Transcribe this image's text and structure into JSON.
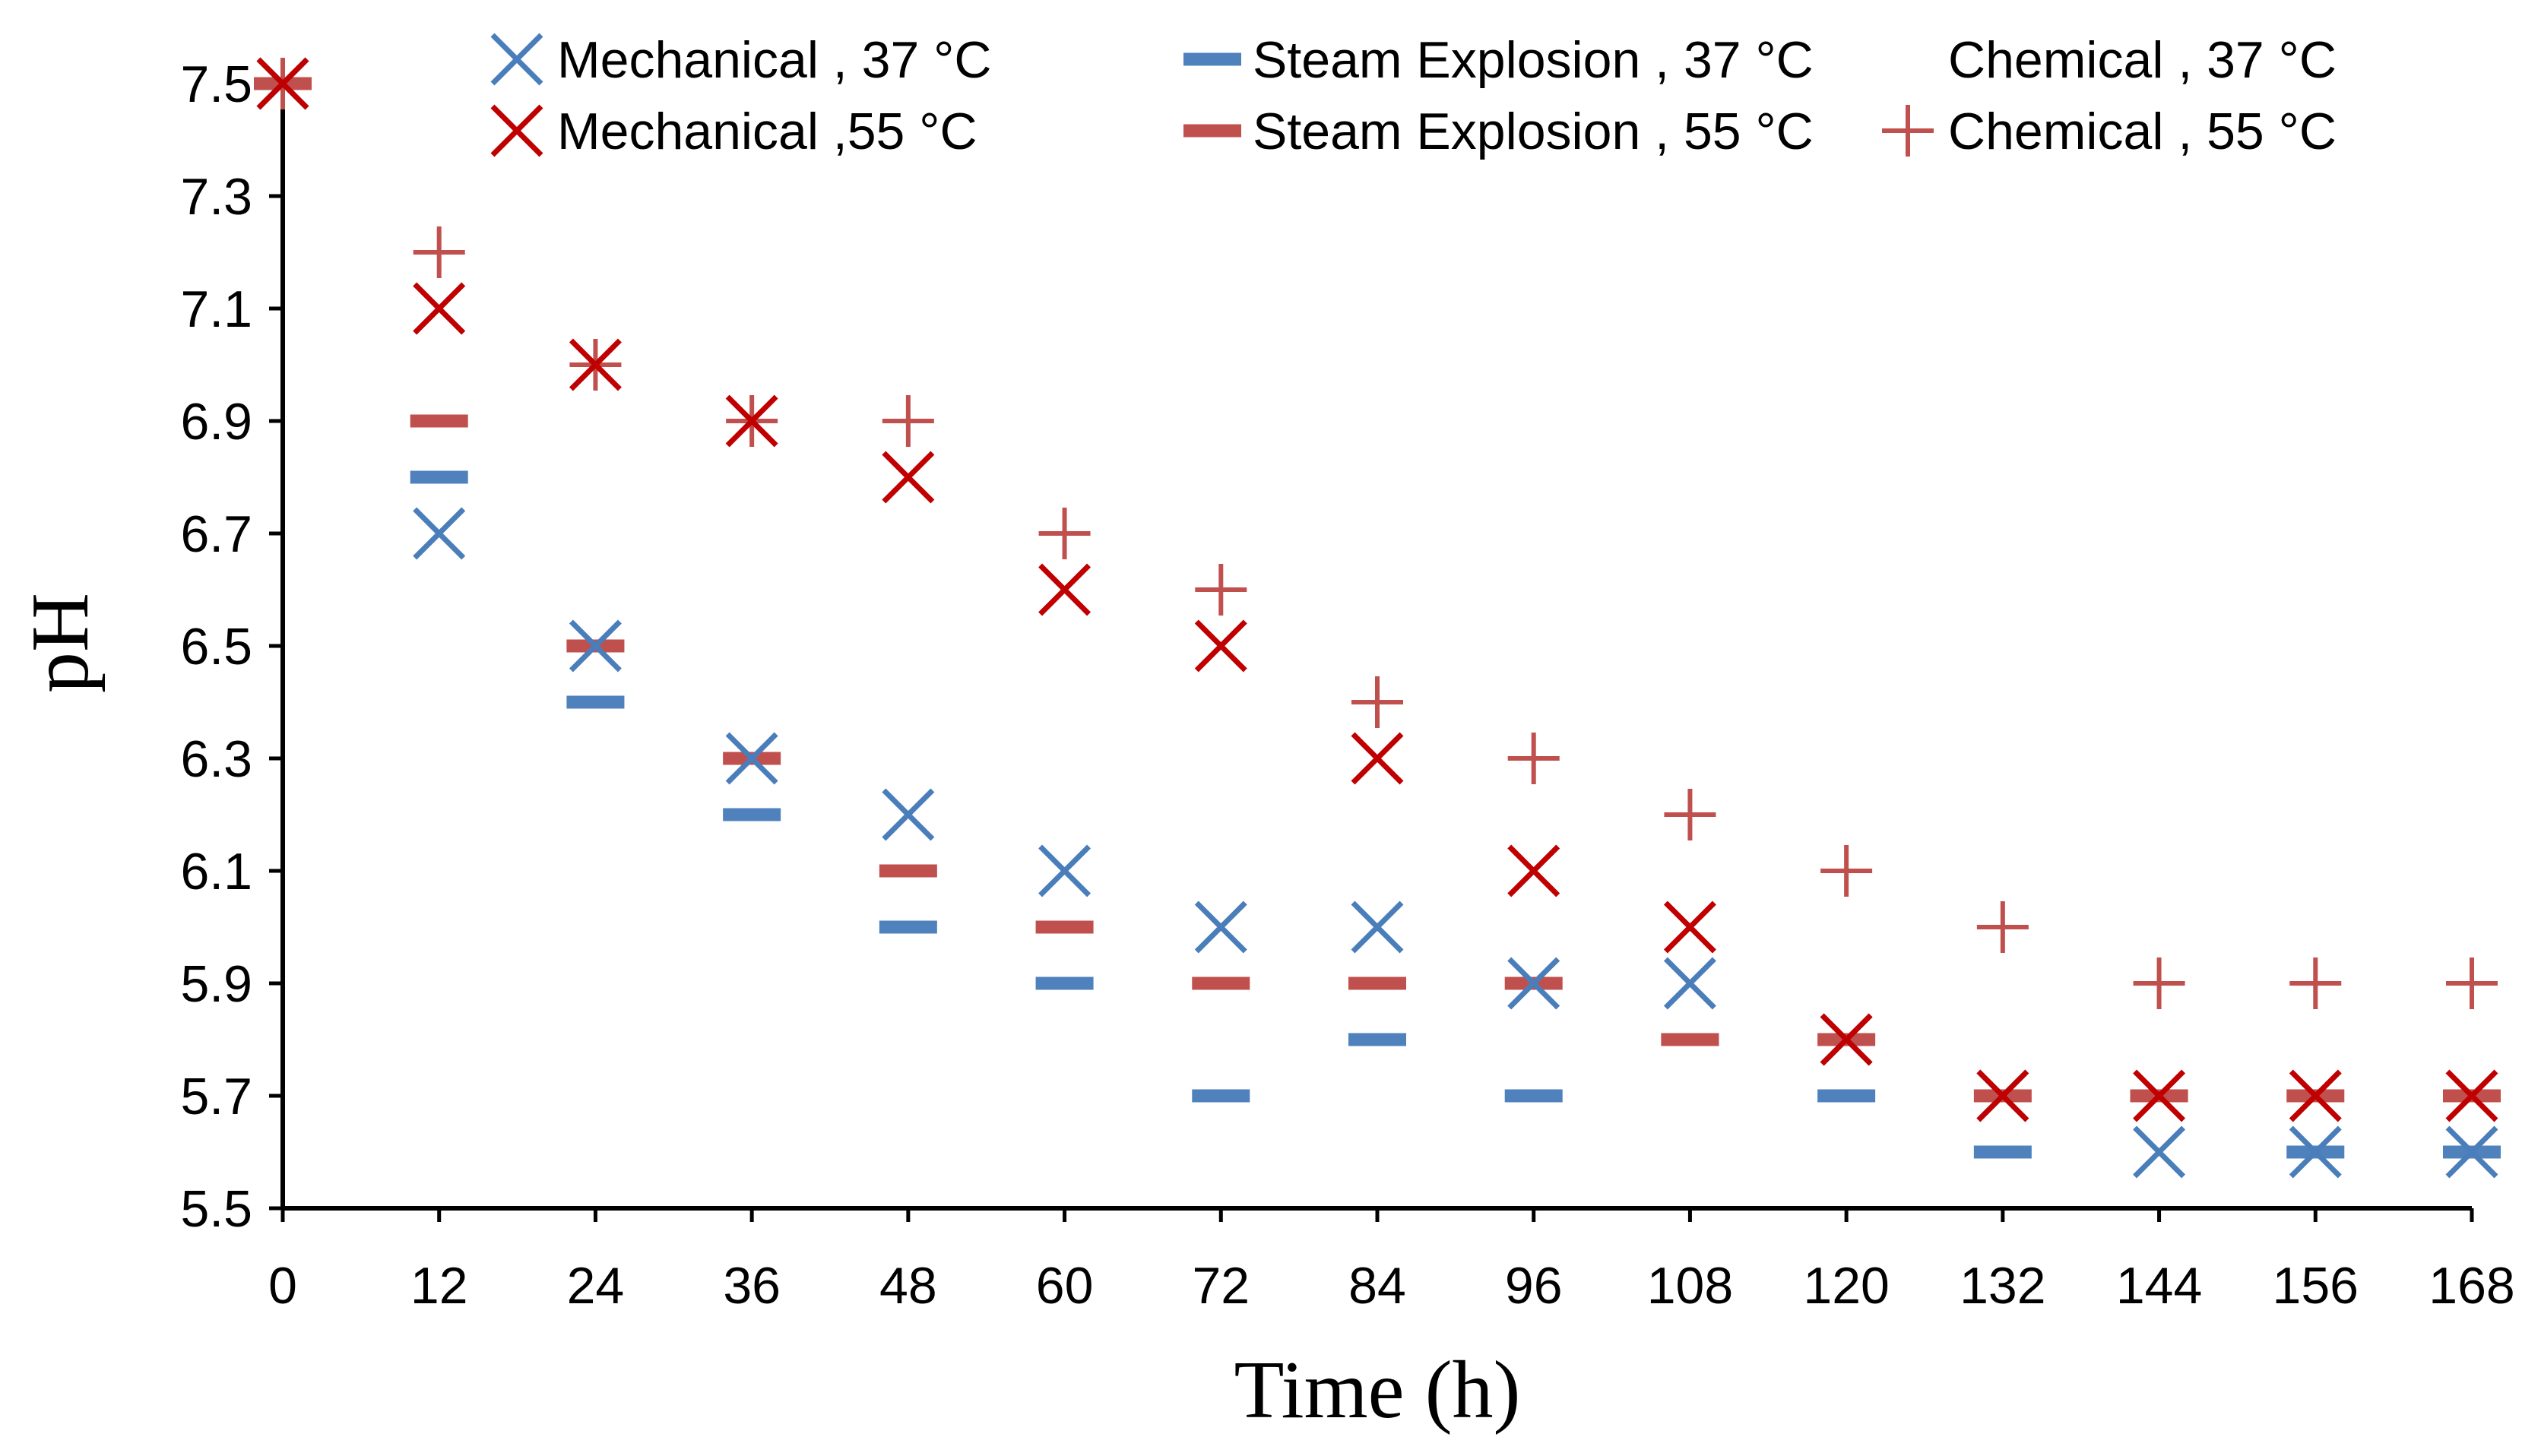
{
  "chart_data": {
    "type": "scatter",
    "title": "",
    "xlabel": "Time (h)",
    "ylabel": "pH",
    "xlim": [
      0,
      168
    ],
    "ylim": [
      5.5,
      7.5
    ],
    "x": [
      0,
      12,
      24,
      36,
      48,
      60,
      72,
      84,
      96,
      108,
      120,
      132,
      144,
      156,
      168
    ],
    "x_tick_labels": [
      "0",
      "12",
      "24",
      "36",
      "48",
      "60",
      "72",
      "84",
      "96",
      "108",
      "120",
      "132",
      "144",
      "156",
      "168"
    ],
    "y_ticks": [
      5.5,
      5.7,
      5.9,
      6.1,
      6.3,
      6.5,
      6.7,
      6.9,
      7.1,
      7.3,
      7.5
    ],
    "y_tick_labels": [
      "5.5",
      "5.7",
      "5.9",
      "6.1",
      "6.3",
      "6.5",
      "6.7",
      "6.9",
      "7.1",
      "7.3",
      "7.5"
    ],
    "legend_position": "top",
    "series": [
      {
        "name": "Mechanical , 37 °C",
        "marker": "x",
        "color": "#4A7EBB",
        "values": [
          7.5,
          6.7,
          6.5,
          6.3,
          6.2,
          6.1,
          6.0,
          6.0,
          5.9,
          5.9,
          5.8,
          5.7,
          5.6,
          5.6,
          5.6
        ]
      },
      {
        "name": "Mechanical ,55 °C",
        "marker": "x",
        "color": "#C00000",
        "values": [
          7.5,
          7.1,
          7.0,
          6.9,
          6.8,
          6.6,
          6.5,
          6.3,
          6.1,
          6.0,
          5.8,
          5.7,
          5.7,
          5.7,
          5.7
        ]
      },
      {
        "name": "Steam Explosion , 37 °C",
        "marker": "dash",
        "color": "#4F81BD",
        "values": [
          7.5,
          6.8,
          6.4,
          6.2,
          6.0,
          5.9,
          5.7,
          5.8,
          5.7,
          5.8,
          5.7,
          5.6,
          5.7,
          5.6,
          5.6
        ]
      },
      {
        "name": "Steam Explosion , 55 °C",
        "marker": "dash",
        "color": "#C0504D",
        "values": [
          7.5,
          6.9,
          6.5,
          6.3,
          6.1,
          6.0,
          5.9,
          5.9,
          5.9,
          5.8,
          5.8,
          5.7,
          5.7,
          5.7,
          5.7
        ]
      },
      {
        "name": "Chemical , 37 °C",
        "marker": "none",
        "color": "#4F81BD",
        "values": []
      },
      {
        "name": "Chemical , 55 °C",
        "marker": "plus",
        "color": "#C0504D",
        "values": [
          7.5,
          7.2,
          7.0,
          6.9,
          6.9,
          6.7,
          6.6,
          6.4,
          6.3,
          6.2,
          6.1,
          6.0,
          5.9,
          5.9,
          5.9
        ]
      }
    ]
  }
}
